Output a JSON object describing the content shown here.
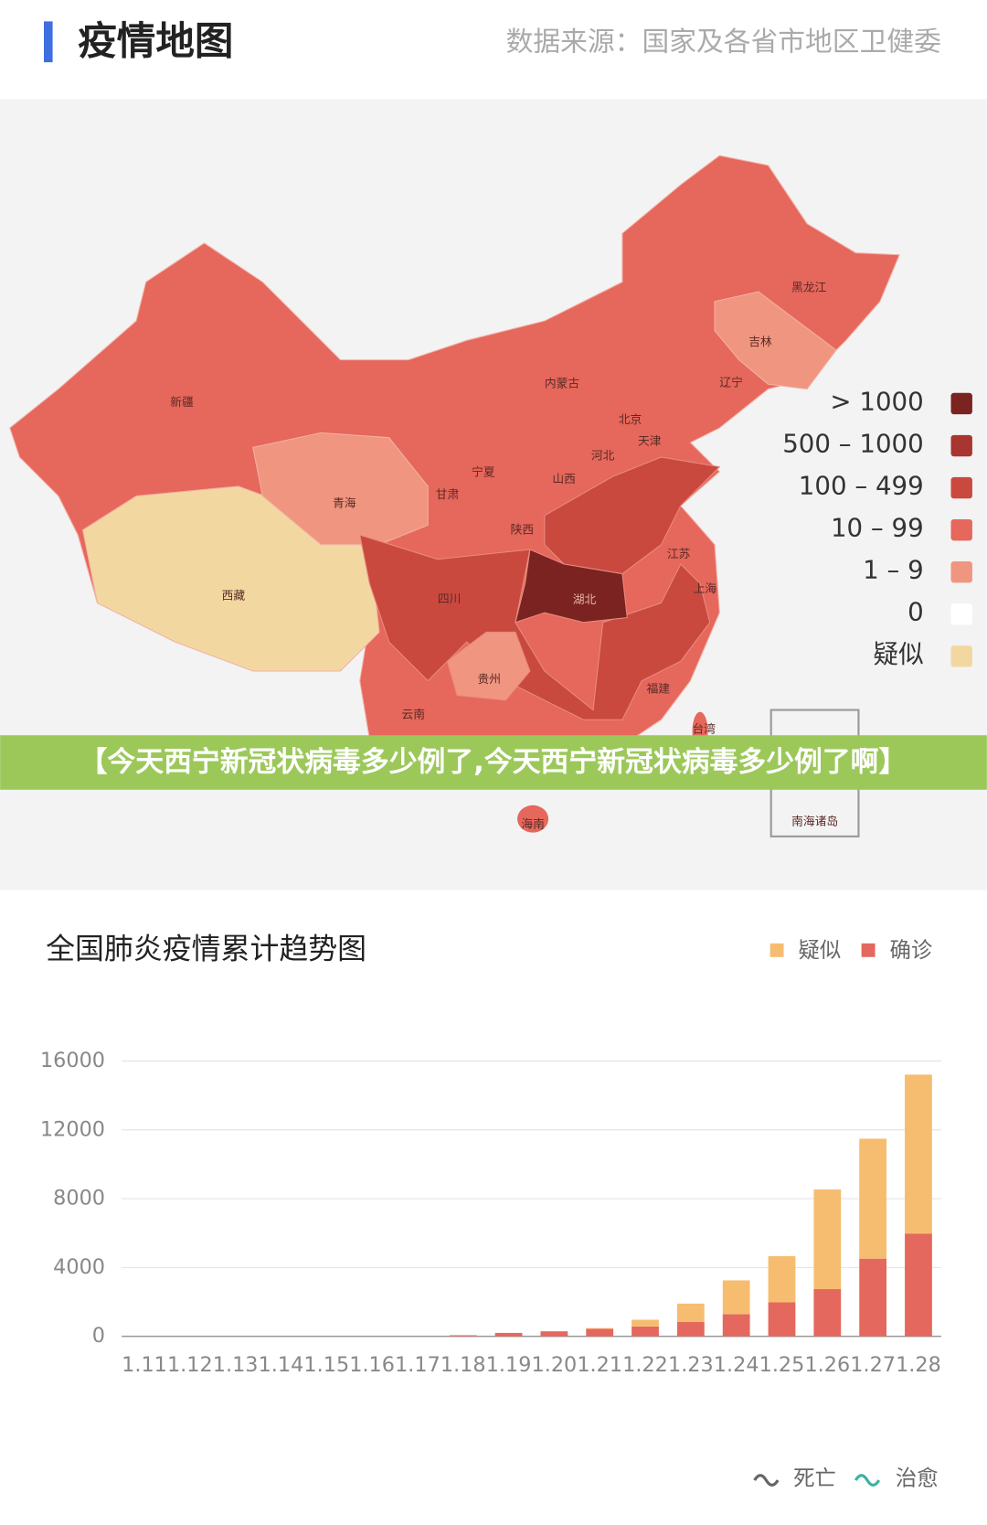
{
  "header": {
    "title": "疫情地图",
    "source": "数据来源：国家及各省市地区卫健委"
  },
  "map": {
    "legend": [
      {
        "label": "> 1000",
        "color": "#7b2320"
      },
      {
        "label": "500 – 1000",
        "color": "#a8352f"
      },
      {
        "label": "100 – 499",
        "color": "#c9493f"
      },
      {
        "label": "10 – 99",
        "color": "#e6675b"
      },
      {
        "label": "1 – 9",
        "color": "#f0957f"
      },
      {
        "label": "0",
        "color": "#ffffff"
      },
      {
        "label": "疑似",
        "color": "#f2d8a0"
      }
    ],
    "provinces": [
      "黑龙江",
      "吉林",
      "辽宁",
      "内蒙古",
      "北京",
      "天津",
      "河北",
      "山西",
      "宁夏",
      "甘肃",
      "青海",
      "新疆",
      "西藏",
      "陕西",
      "湖北",
      "四川",
      "贵州",
      "云南",
      "江苏",
      "上海",
      "福建",
      "台湾",
      "海南",
      "南海诸岛"
    ]
  },
  "banner": "【今天西宁新冠状病毒多少例了,今天西宁新冠状病毒多少例了啊】",
  "chart_data": {
    "type": "stacked_bar",
    "title": "全国肺炎疫情累计趋势图",
    "categories": [
      "1.11",
      "1.12",
      "1.13",
      "1.14",
      "1.15",
      "1.16",
      "1.17",
      "1.18",
      "1.19",
      "1.20",
      "1.21",
      "1.22",
      "1.23",
      "1.24",
      "1.25",
      "1.26",
      "1.27",
      "1.28"
    ],
    "series": [
      {
        "name": "确诊",
        "color": "#e4685d",
        "values": [
          0,
          0,
          0,
          0,
          0,
          0,
          0,
          62,
          198,
          291,
          440,
          571,
          830,
          1287,
          1975,
          2744,
          4515,
          5974
        ]
      },
      {
        "name": "疑似",
        "color": "#f6bd70",
        "values": [
          0,
          0,
          0,
          0,
          0,
          0,
          0,
          0,
          0,
          0,
          37,
          393,
          1072,
          1965,
          2684,
          5794,
          6973,
          9239
        ]
      }
    ],
    "ylim": [
      0,
      16000
    ],
    "yticks": [
      0,
      4000,
      8000,
      12000,
      16000
    ],
    "grid": true
  },
  "footer_legend": [
    "死亡",
    "治愈"
  ]
}
